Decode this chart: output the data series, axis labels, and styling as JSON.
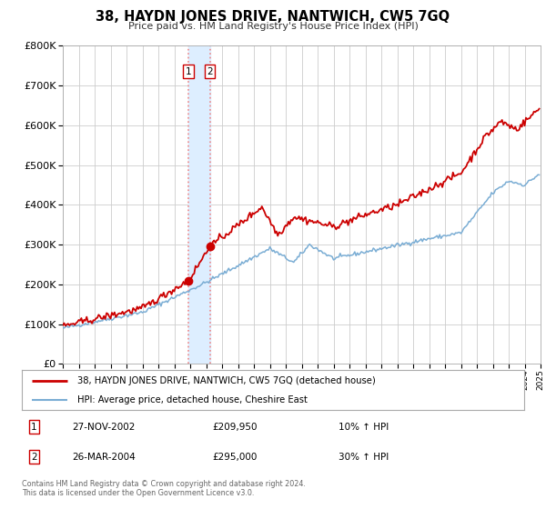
{
  "title": "38, HAYDN JONES DRIVE, NANTWICH, CW5 7GQ",
  "subtitle": "Price paid vs. HM Land Registry's House Price Index (HPI)",
  "legend_line1": "38, HAYDN JONES DRIVE, NANTWICH, CW5 7GQ (detached house)",
  "legend_line2": "HPI: Average price, detached house, Cheshire East",
  "sale1_date": "27-NOV-2002",
  "sale1_price": "£209,950",
  "sale1_hpi": "10% ↑ HPI",
  "sale1_x": 2002.9,
  "sale1_y": 209950,
  "sale2_date": "26-MAR-2004",
  "sale2_price": "£295,000",
  "sale2_hpi": "30% ↑ HPI",
  "sale2_x": 2004.23,
  "sale2_y": 295000,
  "shade_x1": 2002.9,
  "shade_x2": 2004.23,
  "red_line_color": "#cc0000",
  "blue_line_color": "#7aadd4",
  "shade_color": "#ddeeff",
  "vline_color": "#ee8888",
  "grid_color": "#cccccc",
  "background_color": "#ffffff",
  "footnote": "Contains HM Land Registry data © Crown copyright and database right 2024.\nThis data is licensed under the Open Government Licence v3.0.",
  "xmin": 1995,
  "xmax": 2025,
  "ymin": 0,
  "ymax": 800000,
  "yticks": [
    0,
    100000,
    200000,
    300000,
    400000,
    500000,
    600000,
    700000,
    800000
  ],
  "ylabels": [
    "£0",
    "£100K",
    "£200K",
    "£300K",
    "£400K",
    "£500K",
    "£600K",
    "£700K",
    "£800K"
  ]
}
